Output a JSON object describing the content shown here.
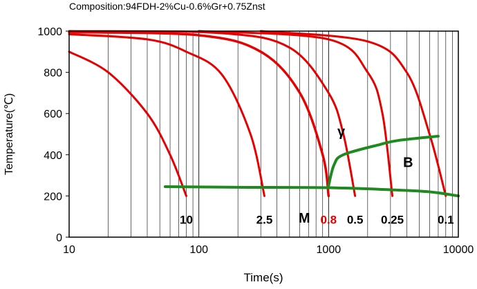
{
  "chart_data": {
    "type": "line",
    "title": "Composition:94FDH-2%Cu-0.6%Gr+0.75Znst",
    "xlabel": "Time(s)",
    "ylabel": "Temperature(℃)",
    "xscale": "log",
    "xlim": [
      10,
      10000
    ],
    "ylim": [
      0,
      1000
    ],
    "x_ticks": [
      10,
      100,
      1000,
      10000
    ],
    "y_ticks": [
      0,
      200,
      400,
      600,
      800,
      1000
    ],
    "grid": "vertical log minor gridlines",
    "colors": {
      "cooling": "#e60000",
      "transformation": "#1f8a1f",
      "highlight_label": "#e60000",
      "axis": "#000000",
      "grid": "#000000"
    },
    "cooling_curves": [
      {
        "rate_label": "10",
        "highlight": false,
        "points": [
          [
            10,
            900
          ],
          [
            20,
            800
          ],
          [
            40,
            600
          ],
          [
            60,
            400
          ],
          [
            80,
            200
          ]
        ]
      },
      {
        "rate_label": "2.5",
        "highlight": false,
        "points": [
          [
            10,
            985
          ],
          [
            40,
            960
          ],
          [
            80,
            900
          ],
          [
            150,
            790
          ],
          [
            250,
            500
          ],
          [
            320,
            200
          ]
        ]
      },
      {
        "rate_label": "0.8",
        "highlight": true,
        "points": [
          [
            10,
            995
          ],
          [
            100,
            980
          ],
          [
            300,
            900
          ],
          [
            600,
            700
          ],
          [
            900,
            400
          ],
          [
            1000,
            200
          ]
        ]
      },
      {
        "rate_label": "0.5",
        "highlight": false,
        "points": [
          [
            10,
            1000
          ],
          [
            150,
            990
          ],
          [
            500,
            920
          ],
          [
            1000,
            700
          ],
          [
            1300,
            500
          ],
          [
            1600,
            200
          ]
        ]
      },
      {
        "rate_label": "0.25",
        "highlight": false,
        "points": [
          [
            100,
            1000
          ],
          [
            1000,
            960
          ],
          [
            2000,
            800
          ],
          [
            2600,
            600
          ],
          [
            3100,
            200
          ]
        ]
      },
      {
        "rate_label": "0.1",
        "highlight": false,
        "points": [
          [
            300,
            1000
          ],
          [
            2000,
            950
          ],
          [
            4000,
            800
          ],
          [
            6000,
            500
          ],
          [
            8000,
            200
          ]
        ]
      }
    ],
    "transformation_curves": [
      {
        "name": "upper",
        "points": [
          [
            1000,
            250
          ],
          [
            1100,
            350
          ],
          [
            1300,
            400
          ],
          [
            2500,
            450
          ],
          [
            3500,
            470
          ],
          [
            7000,
            490
          ]
        ]
      },
      {
        "name": "lower",
        "points": [
          [
            55,
            245
          ],
          [
            200,
            242
          ],
          [
            1000,
            240
          ],
          [
            3000,
            230
          ],
          [
            6000,
            220
          ],
          [
            10000,
            200
          ]
        ]
      }
    ],
    "annotations": [
      {
        "text": "γ",
        "x": 1250,
        "y": 490
      },
      {
        "text": "B",
        "x": 4100,
        "y": 340
      },
      {
        "text": "M",
        "x": 650,
        "y": 70
      }
    ]
  }
}
